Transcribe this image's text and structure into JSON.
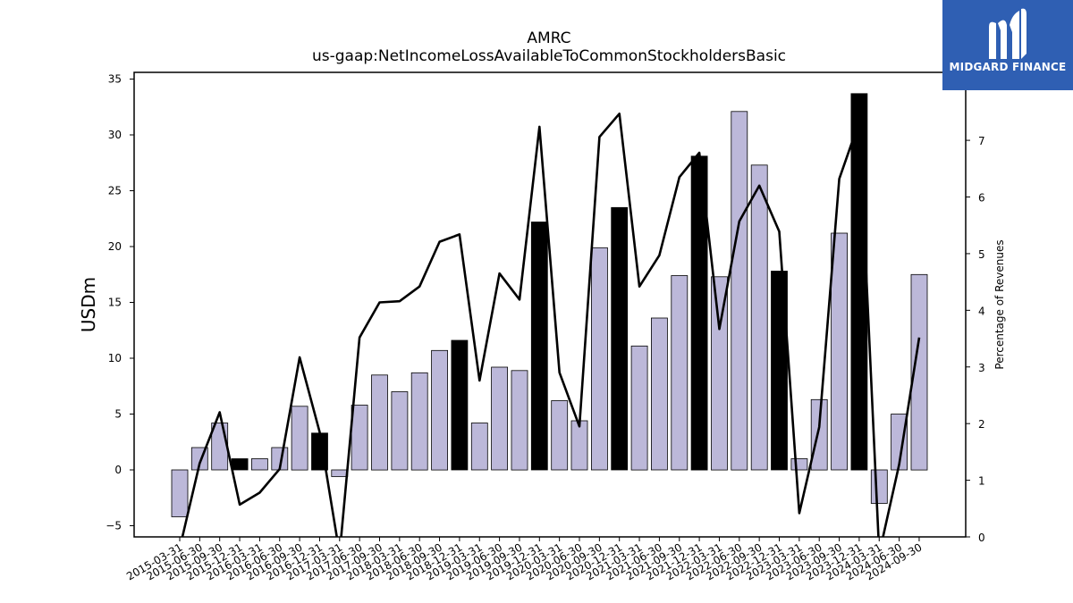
{
  "chart_data": {
    "type": "bar",
    "title": "AMRC",
    "subtitle": "us-gaap:NetIncomeLossAvailableToCommonStockholdersBasic",
    "ylabel": "USDm",
    "y2label": "Percentage of Revenues",
    "ylim": [
      -6.0,
      35.6
    ],
    "y2lim": [
      0,
      8.2
    ],
    "yticks": [
      -5,
      0,
      5,
      10,
      15,
      20,
      25,
      30,
      35
    ],
    "y2ticks": [
      0,
      1,
      2,
      3,
      4,
      5,
      6,
      7
    ],
    "categories": [
      "2015-03-31",
      "2015-06-30",
      "2015-09-30",
      "2015-12-31",
      "2016-03-31",
      "2016-06-30",
      "2016-09-30",
      "2016-12-31",
      "2017-03-31",
      "2017-06-30",
      "2017-09-30",
      "2018-03-31",
      "2018-06-30",
      "2018-09-30",
      "2018-12-31",
      "2019-03-31",
      "2019-06-30",
      "2019-09-30",
      "2019-12-31",
      "2020-03-31",
      "2020-06-30",
      "2020-09-30",
      "2020-12-31",
      "2021-03-31",
      "2021-06-30",
      "2021-09-30",
      "2021-12-31",
      "2022-03-31",
      "2022-06-30",
      "2022-09-30",
      "2022-12-31",
      "2023-03-31",
      "2023-06-30",
      "2023-09-30",
      "2023-12-31",
      "2024-03-31",
      "2024-06-30",
      "2024-09-30"
    ],
    "series": [
      {
        "kind": "bar",
        "values": [
          -4.2,
          2.0,
          4.2,
          1.0,
          1.0,
          2.0,
          5.7,
          3.3,
          -0.6,
          5.8,
          8.5,
          7.0,
          8.7,
          10.7,
          11.6,
          4.2,
          9.2,
          8.9,
          22.2,
          6.2,
          4.4,
          19.9,
          23.5,
          11.1,
          13.6,
          17.4,
          28.1,
          17.3,
          32.1,
          27.3,
          17.8,
          1.0,
          6.3,
          21.2,
          33.7,
          -3.0,
          5.0,
          17.5
        ],
        "highlight": [
          false,
          false,
          false,
          true,
          false,
          false,
          false,
          true,
          false,
          false,
          false,
          false,
          false,
          false,
          true,
          false,
          false,
          false,
          true,
          false,
          false,
          false,
          true,
          false,
          false,
          false,
          true,
          false,
          false,
          false,
          true,
          false,
          false,
          false,
          true,
          false,
          false,
          false
        ]
      },
      {
        "kind": "line",
        "axis": "right",
        "values": [
          -0.2,
          1.3,
          2.2,
          0.57,
          0.78,
          1.2,
          3.17,
          1.85,
          -0.3,
          3.52,
          4.14,
          4.16,
          4.42,
          5.21,
          5.34,
          2.76,
          4.65,
          4.19,
          7.24,
          2.9,
          1.95,
          7.06,
          7.47,
          4.42,
          4.97,
          6.35,
          6.78,
          3.67,
          5.57,
          6.2,
          5.39,
          0.42,
          1.94,
          6.32,
          7.33,
          -0.3,
          1.28,
          3.52
        ]
      }
    ],
    "colors": {
      "bar": "#bcb8d9",
      "bar_highlight": "#000000",
      "line": "#000000"
    }
  },
  "logo": {
    "text": "MIDGARD FINANCE",
    "icon": "midgard-m-icon",
    "color": "#2f5fb3"
  }
}
